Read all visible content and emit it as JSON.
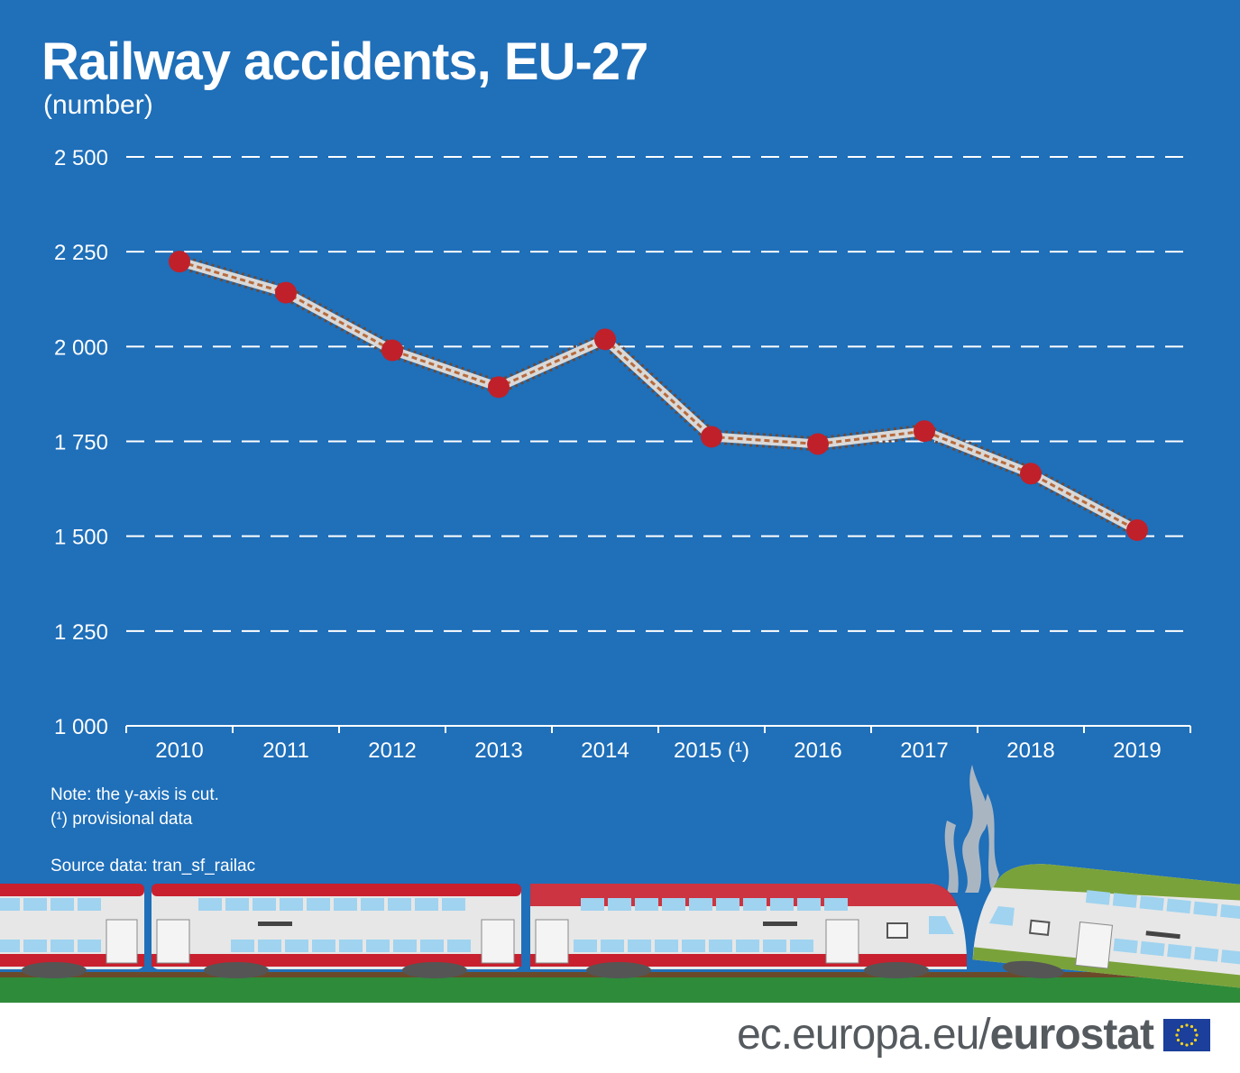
{
  "header": {
    "title": "Railway accidents, EU-27",
    "subtitle": "(number)"
  },
  "chart_data": {
    "type": "line",
    "title": "Railway accidents, EU-27",
    "subtitle": "(number)",
    "categories": [
      "2010",
      "2011",
      "2012",
      "2013",
      "2014",
      "2015 (¹)",
      "2016",
      "2017",
      "2018",
      "2019"
    ],
    "series": [
      {
        "values": [
          2224,
          2142,
          1990,
          1893,
          2019,
          1762,
          1743,
          1777,
          1665,
          1516
        ]
      }
    ],
    "y_ticks": [
      "1 000",
      "1 250",
      "1 500",
      "1 750",
      "2 000",
      "2 250",
      "2 500"
    ],
    "ylim": [
      1000,
      2500
    ],
    "grid": "horizontal dashed",
    "line_color": "#c0c0c0",
    "marker_color": "#c0202a"
  },
  "notes": {
    "line1": "Note: the y-axis is cut.",
    "line2": "(¹) provisional data",
    "source": "Source data: tran_sf_railac"
  },
  "branding": {
    "prefix": "ec.europa.eu/",
    "name": "eurostat"
  },
  "colors": {
    "background": "#1f6fb9",
    "marker": "#c0202a",
    "train_red": "#c8202e",
    "train_green": "#7aa23a",
    "grass": "#2e8b3a"
  }
}
